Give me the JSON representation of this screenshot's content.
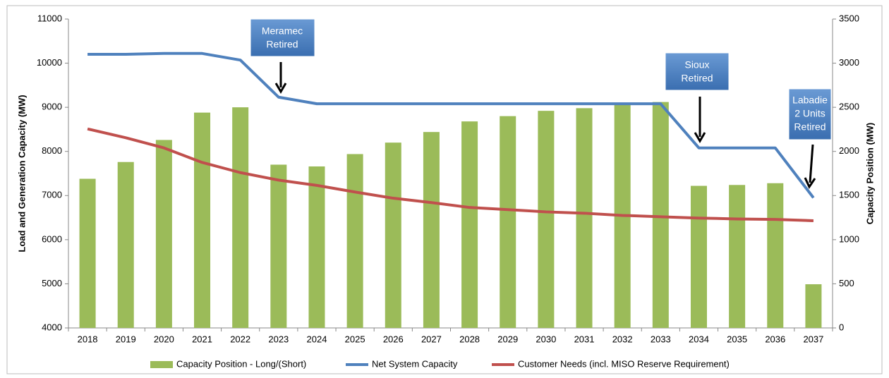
{
  "chart_data": {
    "type": "bar-line",
    "categories": [
      "2018",
      "2019",
      "2020",
      "2021",
      "2022",
      "2023",
      "2024",
      "2025",
      "2026",
      "2027",
      "2028",
      "2029",
      "2030",
      "2031",
      "2032",
      "2033",
      "2034",
      "2035",
      "2036",
      "2037"
    ],
    "series": [
      {
        "name": "Capacity Position - Long/(Short)",
        "type": "bar",
        "axis": "y2",
        "color": "#9bbb59",
        "values": [
          1690,
          1880,
          2130,
          2440,
          2500,
          1850,
          1830,
          1970,
          2100,
          2220,
          2340,
          2400,
          2460,
          2490,
          2530,
          2560,
          1610,
          1620,
          1640,
          495
        ]
      },
      {
        "name": "Net System Capacity",
        "type": "line",
        "color": "#4f81bd",
        "values": [
          10200,
          10200,
          10220,
          10220,
          10070,
          9230,
          9080,
          9080,
          9080,
          9080,
          9080,
          9080,
          9080,
          9080,
          9080,
          9080,
          8080,
          8080,
          8080,
          6950
        ]
      },
      {
        "name": "Customer Needs (incl. MISO Reserve Requirement)",
        "type": "line",
        "color": "#c0504d",
        "values": [
          8510,
          8310,
          8080,
          7750,
          7520,
          7350,
          7230,
          7080,
          6940,
          6840,
          6730,
          6680,
          6630,
          6600,
          6550,
          6520,
          6490,
          6470,
          6460,
          6430
        ]
      }
    ],
    "ylabel": "Load and Generation Capacity (MW)",
    "y2label": "Capacity Position (MW)",
    "ylim": [
      4000,
      11000
    ],
    "yticks": [
      4000,
      5000,
      6000,
      7000,
      8000,
      9000,
      10000,
      11000
    ],
    "y2lim": [
      0,
      3500
    ],
    "y2ticks": [
      0,
      500,
      1000,
      1500,
      2000,
      2500,
      3000,
      3500
    ],
    "grid": false,
    "legend": "bottom",
    "annotations": [
      {
        "lines": [
          "Meramec",
          "Retired"
        ]
      },
      {
        "lines": [
          "Sioux",
          "Retired"
        ]
      },
      {
        "lines": [
          "Labadie",
          "2 Units",
          "Retired"
        ]
      }
    ]
  }
}
